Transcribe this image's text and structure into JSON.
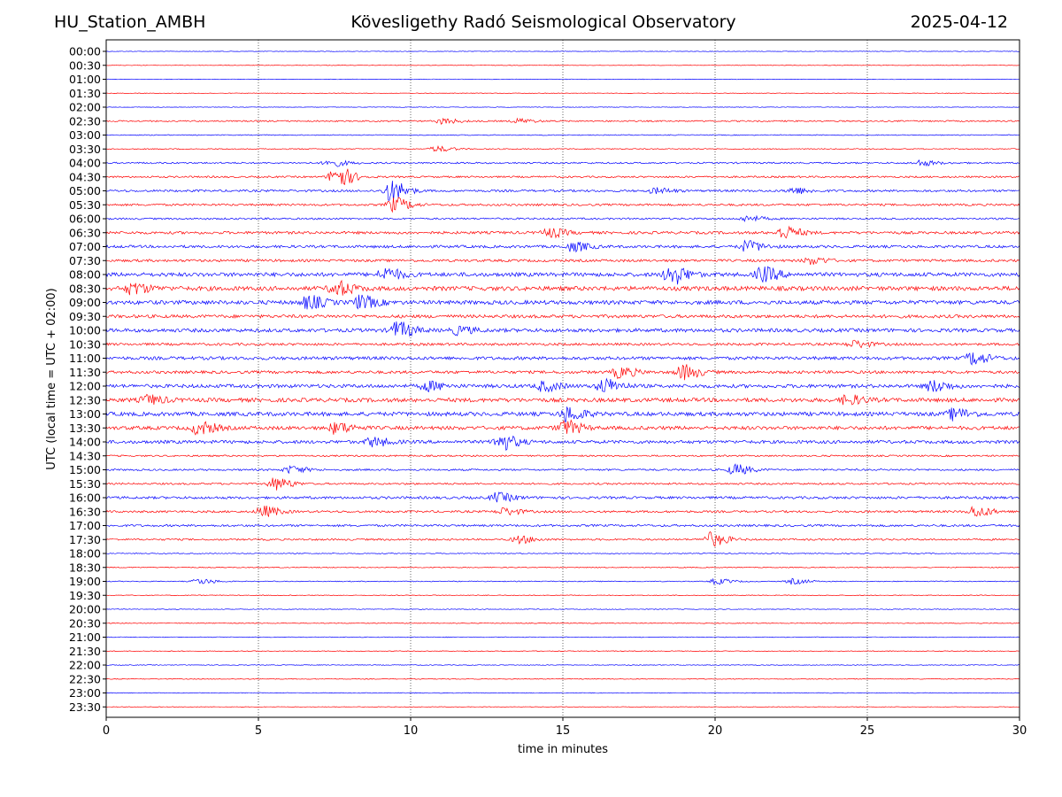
{
  "header": {
    "station": "HU_Station_AMBH",
    "observatory": "Kövesligethy Radó Seismological Observatory",
    "date": "2025-04-12"
  },
  "chart_data": {
    "type": "line",
    "title": "Kövesligethy Radó Seismological Observatory",
    "xlabel": "time in minutes",
    "ylabel": "UTC (local time = UTC + 02:00)",
    "xlim": [
      0,
      30
    ],
    "x_ticks": [
      0,
      5,
      10,
      15,
      20,
      25,
      30
    ],
    "grid": "vertical dotted at 5-minute ticks",
    "row_labels": [
      "00:00",
      "00:30",
      "01:00",
      "01:30",
      "02:00",
      "02:30",
      "03:00",
      "03:30",
      "04:00",
      "04:30",
      "05:00",
      "05:30",
      "06:00",
      "06:30",
      "07:00",
      "07:30",
      "08:00",
      "08:30",
      "09:00",
      "09:30",
      "10:00",
      "10:30",
      "11:00",
      "11:30",
      "12:00",
      "12:30",
      "13:00",
      "13:30",
      "14:00",
      "14:30",
      "15:00",
      "15:30",
      "16:00",
      "16:30",
      "17:00",
      "17:30",
      "18:00",
      "18:30",
      "19:00",
      "19:30",
      "20:00",
      "20:30",
      "21:00",
      "21:30",
      "22:00",
      "22:30",
      "23:00",
      "23:30"
    ],
    "trace_colors": [
      "#0000ff",
      "#ff0000"
    ],
    "background_amplitude": [
      0.3,
      0.3,
      0.3,
      0.3,
      0.3,
      0.8,
      0.5,
      0.6,
      0.9,
      1.0,
      1.2,
      1.2,
      1.0,
      1.5,
      1.5,
      1.4,
      2.2,
      2.4,
      2.2,
      1.8,
      2.0,
      1.4,
      1.8,
      1.6,
      2.0,
      2.2,
      2.2,
      2.0,
      1.8,
      0.9,
      1.0,
      1.0,
      1.4,
      1.2,
      1.2,
      1.0,
      0.5,
      0.5,
      0.5,
      0.4,
      0.4,
      0.4,
      0.4,
      0.4,
      0.4,
      0.4,
      0.4,
      0.3
    ],
    "events": [
      {
        "row": 5,
        "minute": 11.0,
        "amplitude": 3
      },
      {
        "row": 5,
        "minute": 13.5,
        "amplitude": 2.5
      },
      {
        "row": 7,
        "minute": 10.8,
        "amplitude": 3
      },
      {
        "row": 8,
        "minute": 7.3,
        "amplitude": 4
      },
      {
        "row": 8,
        "minute": 26.7,
        "amplitude": 3
      },
      {
        "row": 9,
        "minute": 7.5,
        "amplitude": 13
      },
      {
        "row": 10,
        "minute": 9.3,
        "amplitude": 12
      },
      {
        "row": 10,
        "minute": 18.0,
        "amplitude": 3
      },
      {
        "row": 10,
        "minute": 22.5,
        "amplitude": 3.5
      },
      {
        "row": 11,
        "minute": 9.4,
        "amplitude": 8
      },
      {
        "row": 12,
        "minute": 21.0,
        "amplitude": 3
      },
      {
        "row": 13,
        "minute": 14.5,
        "amplitude": 5
      },
      {
        "row": 13,
        "minute": 22.2,
        "amplitude": 7
      },
      {
        "row": 14,
        "minute": 15.3,
        "amplitude": 5
      },
      {
        "row": 14,
        "minute": 21.0,
        "amplitude": 6
      },
      {
        "row": 15,
        "minute": 23.1,
        "amplitude": 4
      },
      {
        "row": 16,
        "minute": 9.1,
        "amplitude": 7
      },
      {
        "row": 16,
        "minute": 18.5,
        "amplitude": 11
      },
      {
        "row": 16,
        "minute": 21.5,
        "amplitude": 8
      },
      {
        "row": 17,
        "minute": 0.8,
        "amplitude": 6
      },
      {
        "row": 17,
        "minute": 7.5,
        "amplitude": 8
      },
      {
        "row": 18,
        "minute": 6.6,
        "amplitude": 7
      },
      {
        "row": 18,
        "minute": 8.3,
        "amplitude": 7
      },
      {
        "row": 20,
        "minute": 9.5,
        "amplitude": 9
      },
      {
        "row": 20,
        "minute": 11.5,
        "amplitude": 4
      },
      {
        "row": 21,
        "minute": 24.5,
        "amplitude": 4
      },
      {
        "row": 22,
        "minute": 28.4,
        "amplitude": 7
      },
      {
        "row": 23,
        "minute": 16.8,
        "amplitude": 6
      },
      {
        "row": 23,
        "minute": 18.9,
        "amplitude": 8
      },
      {
        "row": 24,
        "minute": 10.5,
        "amplitude": 5
      },
      {
        "row": 24,
        "minute": 14.3,
        "amplitude": 5
      },
      {
        "row": 24,
        "minute": 16.3,
        "amplitude": 8
      },
      {
        "row": 24,
        "minute": 27.1,
        "amplitude": 6
      },
      {
        "row": 25,
        "minute": 1.3,
        "amplitude": 5
      },
      {
        "row": 25,
        "minute": 24.3,
        "amplitude": 5
      },
      {
        "row": 26,
        "minute": 15.1,
        "amplitude": 8
      },
      {
        "row": 26,
        "minute": 27.8,
        "amplitude": 6
      },
      {
        "row": 27,
        "minute": 3.0,
        "amplitude": 7
      },
      {
        "row": 27,
        "minute": 7.5,
        "amplitude": 6
      },
      {
        "row": 27,
        "minute": 15.0,
        "amplitude": 8
      },
      {
        "row": 28,
        "minute": 8.7,
        "amplitude": 5
      },
      {
        "row": 28,
        "minute": 12.9,
        "amplitude": 9
      },
      {
        "row": 30,
        "minute": 6.0,
        "amplitude": 4
      },
      {
        "row": 30,
        "minute": 20.6,
        "amplitude": 6
      },
      {
        "row": 31,
        "minute": 5.5,
        "amplitude": 7
      },
      {
        "row": 32,
        "minute": 12.8,
        "amplitude": 5
      },
      {
        "row": 33,
        "minute": 5.1,
        "amplitude": 6
      },
      {
        "row": 33,
        "minute": 13.0,
        "amplitude": 4
      },
      {
        "row": 33,
        "minute": 28.5,
        "amplitude": 6
      },
      {
        "row": 35,
        "minute": 13.5,
        "amplitude": 4
      },
      {
        "row": 35,
        "minute": 19.8,
        "amplitude": 8
      },
      {
        "row": 38,
        "minute": 3.0,
        "amplitude": 3
      },
      {
        "row": 38,
        "minute": 20.0,
        "amplitude": 3
      },
      {
        "row": 38,
        "minute": 22.5,
        "amplitude": 3
      }
    ]
  }
}
